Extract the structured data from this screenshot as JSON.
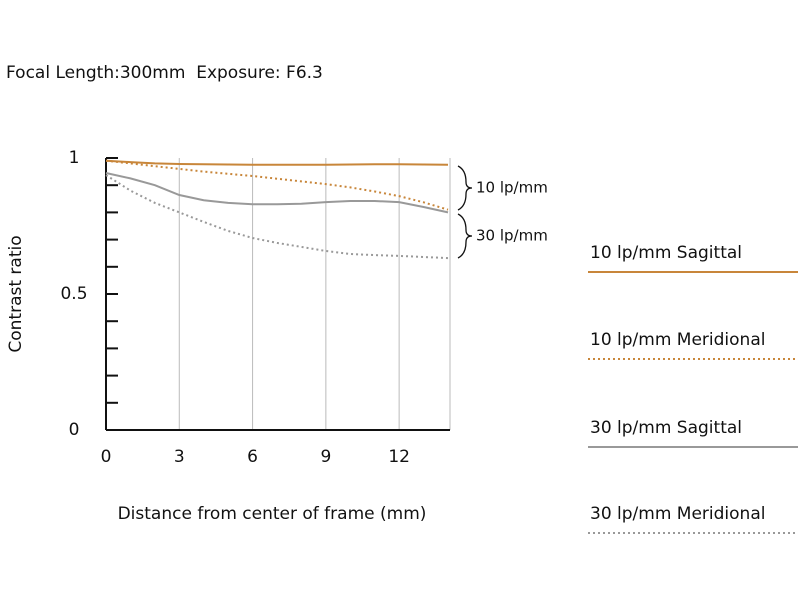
{
  "chart_data": {
    "type": "line",
    "title": "Focal Length:300mm  Exposure: F6.3",
    "x_label": "Distance from center of frame (mm)",
    "y_label": "Contrast ratio",
    "annotations": [
      "10 lp/mm",
      "30 lp/mm"
    ],
    "x": [
      0,
      1,
      2,
      3,
      4,
      5,
      6,
      7,
      8,
      9,
      10,
      11,
      12,
      13,
      14
    ],
    "xlim": [
      0,
      14
    ],
    "xticks": [
      0,
      3,
      6,
      9,
      12
    ],
    "ylim": [
      0,
      1
    ],
    "yticks": [
      0,
      0.5,
      1
    ],
    "yminorticks": [
      0.1,
      0.2,
      0.3,
      0.4,
      0.6,
      0.7,
      0.8,
      0.9
    ],
    "grid": "x",
    "series": [
      {
        "name": "10 lp/mm Sagittal",
        "color": "#c8863a",
        "dash": "solid",
        "values": [
          0.99,
          0.985,
          0.98,
          0.978,
          0.977,
          0.976,
          0.975,
          0.975,
          0.975,
          0.975,
          0.976,
          0.977,
          0.977,
          0.976,
          0.975
        ]
      },
      {
        "name": "10 lp/mm Meridional",
        "color": "#c8863a",
        "dash": "dotted",
        "values": [
          0.99,
          0.98,
          0.97,
          0.96,
          0.95,
          0.942,
          0.934,
          0.924,
          0.914,
          0.904,
          0.892,
          0.877,
          0.86,
          0.837,
          0.81
        ]
      },
      {
        "name": "30 lp/mm Sagittal",
        "color": "#999999",
        "dash": "solid",
        "values": [
          0.945,
          0.925,
          0.9,
          0.864,
          0.845,
          0.835,
          0.83,
          0.83,
          0.832,
          0.838,
          0.842,
          0.842,
          0.838,
          0.82,
          0.8
        ]
      },
      {
        "name": "30 lp/mm Meridional",
        "color": "#999999",
        "dash": "dotted",
        "values": [
          0.937,
          0.88,
          0.835,
          0.8,
          0.765,
          0.732,
          0.706,
          0.688,
          0.673,
          0.658,
          0.647,
          0.643,
          0.64,
          0.636,
          0.632
        ]
      }
    ]
  }
}
